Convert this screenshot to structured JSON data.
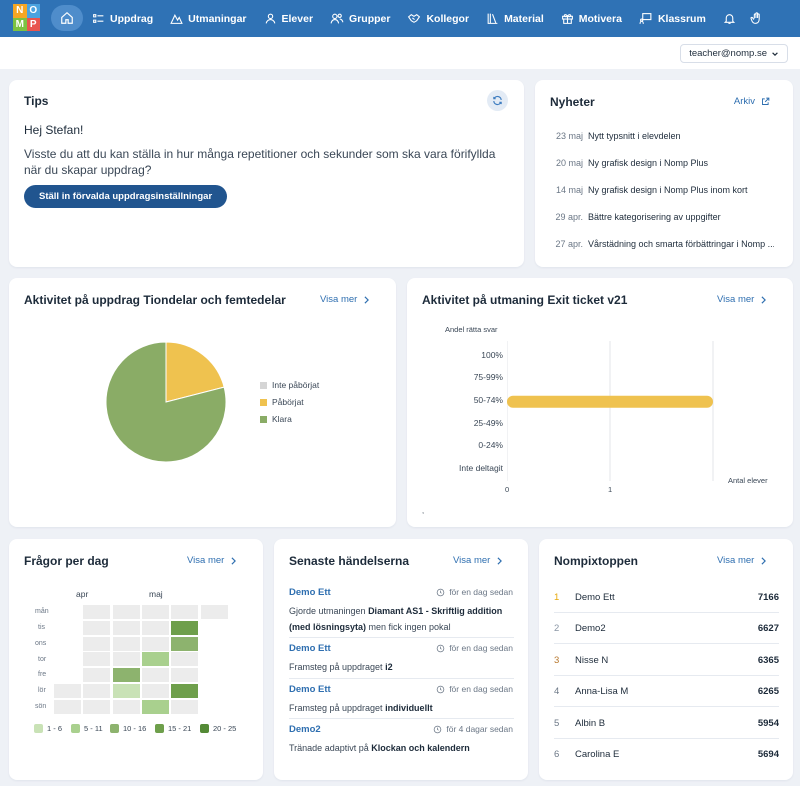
{
  "logo": {
    "letters": [
      "N",
      "O",
      "M",
      "P"
    ]
  },
  "nav": {
    "items": [
      {
        "label": "Uppdrag",
        "icon": "list-icon"
      },
      {
        "label": "Utmaningar",
        "icon": "mountain-icon"
      },
      {
        "label": "Elever",
        "icon": "user-icon"
      },
      {
        "label": "Grupper",
        "icon": "users-icon"
      },
      {
        "label": "Kollegor",
        "icon": "handshake-icon"
      },
      {
        "label": "Material",
        "icon": "books-icon"
      },
      {
        "label": "Motivera",
        "icon": "gift-icon"
      },
      {
        "label": "Klassrum",
        "icon": "presentation-icon"
      }
    ]
  },
  "user": {
    "email": "teacher@nomp.se"
  },
  "tips": {
    "title": "Tips",
    "greeting": "Hej Stefan!",
    "text": "Visste du att du kan ställa in hur många repetitioner och sekunder som ska vara förifyllda när du skapar uppdrag?",
    "button": "Ställ in förvalda uppdragsinställningar"
  },
  "news": {
    "title": "Nyheter",
    "archive": "Arkiv",
    "items": [
      {
        "date": "23 maj",
        "text": "Nytt typsnitt i elevdelen"
      },
      {
        "date": "20 maj",
        "text": "Ny grafisk design i Nomp Plus"
      },
      {
        "date": "14 maj",
        "text": "Ny grafisk design i Nomp Plus inom kort"
      },
      {
        "date": "29 apr.",
        "text": "Bättre kategorisering av uppgifter"
      },
      {
        "date": "27 apr.",
        "text": "Vårstädning och smarta förbättringar i Nomp ..."
      }
    ]
  },
  "activity_assignment": {
    "title": "Aktivitet på uppdrag Tiondelar och femtedelar",
    "more": "Visa mer"
  },
  "activity_challenge": {
    "title": "Aktivitet på utmaning Exit ticket v21",
    "more": "Visa mer",
    "footnote": ","
  },
  "chart_data": [
    {
      "type": "pie",
      "series": [
        {
          "name": "Inte påbörjat",
          "value": 0,
          "color": "#d5d5d5"
        },
        {
          "name": "Påbörjat",
          "value": 21,
          "color": "#efc24f"
        },
        {
          "name": "Klara",
          "value": 79,
          "color": "#8aac66"
        }
      ]
    },
    {
      "type": "bar",
      "orientation": "horizontal",
      "title": "Andel rätta svar",
      "categories": [
        "100%",
        "75-99%",
        "50-74%",
        "25-49%",
        "0-24%",
        "Inte deltagit"
      ],
      "values": [
        0,
        0,
        2,
        0,
        0,
        0
      ],
      "xlabel": "Antal elever",
      "xticks": [
        "0",
        "1"
      ],
      "xlim": [
        0,
        2
      ],
      "bar_color": "#efc24f"
    },
    {
      "type": "heatmap",
      "title": "Frågor per dag",
      "months": [
        "apr",
        "maj"
      ],
      "days": [
        "mån",
        "tis",
        "ons",
        "tor",
        "fre",
        "lör",
        "sön"
      ],
      "weeks": 6,
      "levels": [
        [
          null,
          0,
          0,
          0,
          0,
          0
        ],
        [
          null,
          0,
          0,
          0,
          4,
          null
        ],
        [
          null,
          0,
          0,
          0,
          3,
          null
        ],
        [
          null,
          0,
          0,
          2,
          0,
          null
        ],
        [
          null,
          0,
          3,
          0,
          0,
          null
        ],
        [
          0,
          0,
          1,
          0,
          4,
          null
        ],
        [
          0,
          0,
          0,
          2,
          0,
          null
        ]
      ],
      "level_colors": [
        "#ececec",
        "#c9e2b6",
        "#a9d08e",
        "#8db36e",
        "#6e9f4b",
        "#548a36"
      ],
      "legend": [
        {
          "label": "1 - 6",
          "color": "#c9e2b6"
        },
        {
          "label": "5 - 11",
          "color": "#a9d08e"
        },
        {
          "label": "10 - 16",
          "color": "#8db36e"
        },
        {
          "label": "15 - 21",
          "color": "#6e9f4b"
        },
        {
          "label": "20 - 25",
          "color": "#548a36"
        }
      ]
    }
  ],
  "questions": {
    "title": "Frågor per dag",
    "more": "Visa mer"
  },
  "events": {
    "title": "Senaste händelserna",
    "more": "Visa mer",
    "items": [
      {
        "name": "Demo Ett",
        "time": "för en dag sedan",
        "pre": "Gjorde utmaningen ",
        "bold": "Diamant AS1 - Skriftlig addition (med lösningsyta)",
        "post": " men fick ingen pokal"
      },
      {
        "name": "Demo Ett",
        "time": "för en dag sedan",
        "pre": "Framsteg på uppdraget ",
        "bold": "i2",
        "post": ""
      },
      {
        "name": "Demo Ett",
        "time": "för en dag sedan",
        "pre": "Framsteg på uppdraget ",
        "bold": "individuellt",
        "post": ""
      },
      {
        "name": "Demo2",
        "time": "för 4 dagar sedan",
        "pre": "Tränade adaptivt på ",
        "bold": "Klockan och kalendern",
        "post": ""
      }
    ]
  },
  "leaderboard": {
    "title": "Nompixtoppen",
    "more": "Visa mer",
    "rows": [
      {
        "rank": "1",
        "name": "Demo Ett",
        "score": "7166",
        "rank_color": "#e7a90c"
      },
      {
        "rank": "2",
        "name": "Demo2",
        "score": "6627",
        "rank_color": "#8a96a5"
      },
      {
        "rank": "3",
        "name": "Nisse N",
        "score": "6365",
        "rank_color": "#b7782e"
      },
      {
        "rank": "4",
        "name": "Anna-Lisa M",
        "score": "6265",
        "rank_color": "#6b7786"
      },
      {
        "rank": "5",
        "name": "Albin B",
        "score": "5954",
        "rank_color": "#6b7786"
      },
      {
        "rank": "6",
        "name": "Carolina E",
        "score": "5694",
        "rank_color": "#6b7786"
      }
    ]
  }
}
